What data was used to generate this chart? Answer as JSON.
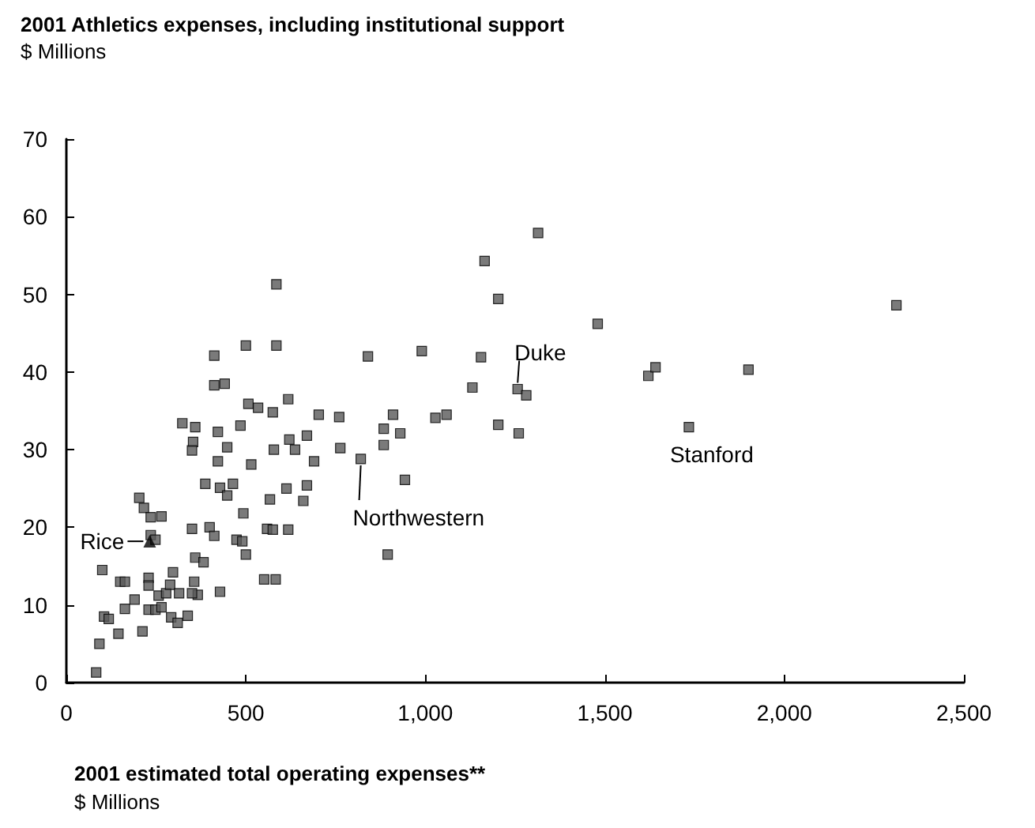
{
  "chart_data": {
    "type": "scatter",
    "title": "2001 Athletics expenses, including institutional support",
    "ylabel": "$ Millions",
    "xlabel": "2001 estimated total operating expenses**",
    "annotations": [
      "$ Millions",
      {
        "text": "Duke",
        "x": 1257,
        "y": 37.8
      },
      {
        "text": "Northwestern",
        "x": 820,
        "y": 28.8
      },
      {
        "text": "Stanford",
        "x": 1734,
        "y": 32.9
      },
      {
        "text": "Rice",
        "x": 232,
        "y": 18.2
      }
    ],
    "marker": "square",
    "grid": false,
    "xlim": [
      0,
      2500
    ],
    "xticks": [
      0,
      500,
      {
        "value": 1000,
        "label": "1,000"
      },
      {
        "value": 1500,
        "label": "1,500"
      },
      {
        "value": 2000,
        "label": "2,000"
      },
      {
        "value": 2500,
        "label": "2,500"
      }
    ],
    "ylim": [
      0,
      70
    ],
    "yticks": [
      0,
      10,
      20,
      30,
      40,
      50,
      60,
      70
    ],
    "series": [
      {
        "color": "#595959",
        "x": [
          83,
          92,
          100,
          105,
          118,
          145,
          150,
          163,
          163,
          190,
          212,
          203,
          216,
          235,
          265,
          235,
          248,
          229,
          229,
          229,
          248,
          265,
          257,
          278,
          289,
          297,
          314,
          292,
          310,
          338,
          350,
          359,
          382,
          356,
          366,
          350,
          399,
          412,
          428,
          323,
          359,
          353,
          350,
          412,
          412,
          441,
          422,
          422,
          448,
          387,
          428,
          448,
          464,
          485,
          507,
          534,
          575,
          618,
          500,
          585,
          585,
          515,
          493,
          474,
          490,
          500,
          567,
          559,
          575,
          618,
          551,
          583,
          578,
          621,
          637,
          670,
          703,
          760,
          763,
          613,
          670,
          660,
          690,
          820,
          840,
          884,
          884,
          910,
          930,
          943,
          895,
          990,
          1028,
          1059,
          1131,
          1155,
          1165,
          1203,
          1314,
          1203,
          1260,
          1257,
          1281,
          1480,
          1621,
          1641,
          1900,
          1734,
          2312
        ],
        "values": [
          1.3,
          5.0,
          14.5,
          8.5,
          8.2,
          6.3,
          13.0,
          13.0,
          9.5,
          10.7,
          6.6,
          23.8,
          22.5,
          21.3,
          21.4,
          19.0,
          18.4,
          13.5,
          12.5,
          9.4,
          9.4,
          9.7,
          11.2,
          11.5,
          12.6,
          14.2,
          11.5,
          8.4,
          7.7,
          8.6,
          19.8,
          16.1,
          15.5,
          13.0,
          11.3,
          11.5,
          20.0,
          18.9,
          11.7,
          33.4,
          32.9,
          31.0,
          29.9,
          42.1,
          38.3,
          38.5,
          32.3,
          28.5,
          30.3,
          25.6,
          25.1,
          24.1,
          25.6,
          33.1,
          35.9,
          35.4,
          34.8,
          36.5,
          43.4,
          43.4,
          51.3,
          28.1,
          21.8,
          18.4,
          18.2,
          16.5,
          23.6,
          19.8,
          19.7,
          19.7,
          13.3,
          13.3,
          30.0,
          31.3,
          30.0,
          31.8,
          34.5,
          34.2,
          30.2,
          25.0,
          25.4,
          23.4,
          28.5,
          28.8,
          42.0,
          32.7,
          30.6,
          34.5,
          32.1,
          26.1,
          16.5,
          42.7,
          34.1,
          34.5,
          38.0,
          41.9,
          54.3,
          49.4,
          57.9,
          33.2,
          32.1,
          37.8,
          37.0,
          46.2,
          39.5,
          40.6,
          40.3,
          32.9,
          48.6
        ]
      },
      {
        "color": "#000000",
        "marker": "triangle",
        "x": [
          232
        ],
        "values": [
          18.2
        ]
      }
    ]
  }
}
